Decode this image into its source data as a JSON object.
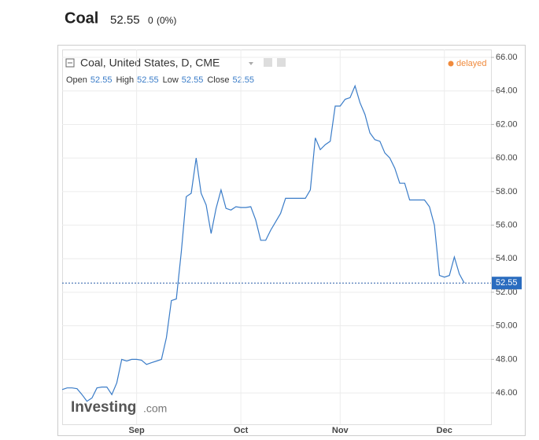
{
  "header": {
    "title": "Coal",
    "price": "52.55",
    "change": "0",
    "change_pct": "(0%)"
  },
  "chart_data": {
    "type": "line",
    "title": "Coal, United States, D, CME",
    "status": "delayed",
    "ohlc": [
      {
        "label": "Open",
        "value": "52.55"
      },
      {
        "label": "High",
        "value": "52.55"
      },
      {
        "label": "Low",
        "value": "52.55"
      },
      {
        "label": "Close",
        "value": "52.55"
      }
    ],
    "watermark": {
      "brand": "Investing",
      "suffix": ".com"
    },
    "categories": [
      null,
      null,
      null,
      null,
      null,
      null,
      null,
      null,
      null,
      null,
      null,
      null,
      null,
      null,
      null,
      "Sep",
      null,
      null,
      null,
      null,
      null,
      null,
      null,
      null,
      null,
      null,
      null,
      null,
      null,
      null,
      null,
      null,
      null,
      null,
      null,
      null,
      "Oct",
      null,
      null,
      null,
      null,
      null,
      null,
      null,
      null,
      null,
      null,
      null,
      null,
      null,
      null,
      null,
      null,
      null,
      null,
      null,
      "Nov",
      null,
      null,
      null,
      null,
      null,
      null,
      null,
      null,
      null,
      null,
      null,
      null,
      null,
      null,
      null,
      null,
      null,
      null,
      null,
      null,
      "Dec",
      null,
      null,
      null,
      null
    ],
    "series": [
      {
        "name": "Coal",
        "color": "#3a7cc8",
        "values": [
          46.2,
          46.3,
          46.3,
          46.25,
          45.9,
          45.5,
          45.7,
          46.3,
          46.35,
          46.35,
          45.9,
          46.6,
          48.0,
          47.9,
          48.0,
          48.0,
          47.95,
          47.7,
          47.8,
          47.9,
          48.0,
          49.3,
          51.5,
          51.6,
          54.4,
          57.7,
          57.9,
          60.0,
          57.9,
          57.2,
          55.5,
          57.0,
          58.1,
          57.0,
          56.9,
          57.1,
          57.05,
          57.05,
          57.1,
          56.3,
          55.1,
          55.1,
          55.7,
          56.2,
          56.7,
          57.6,
          57.6,
          57.6,
          57.6,
          57.6,
          58.1,
          61.2,
          60.5,
          60.8,
          61.0,
          63.1,
          63.1,
          63.5,
          63.6,
          64.3,
          63.3,
          62.6,
          61.5,
          61.1,
          61.0,
          60.3,
          60.0,
          59.4,
          58.5,
          58.5,
          57.5,
          57.5,
          57.5,
          57.5,
          57.1,
          56.0,
          53.0,
          52.9,
          53.0,
          54.1,
          53.1,
          52.55
        ]
      }
    ],
    "last_price": {
      "value": 52.55,
      "label": "52.55"
    },
    "ylim": [
      44.13,
      66.47
    ],
    "yticks": [
      {
        "value": 46,
        "label": "46.00"
      },
      {
        "value": 48,
        "label": "48.00"
      },
      {
        "value": 50,
        "label": "50.00"
      },
      {
        "value": 52,
        "label": "52.00"
      },
      {
        "value": 54,
        "label": "54.00"
      },
      {
        "value": 56,
        "label": "56.00"
      },
      {
        "value": 58,
        "label": "58.00"
      },
      {
        "value": 60,
        "label": "60.00"
      },
      {
        "value": 62,
        "label": "62.00"
      },
      {
        "value": 64,
        "label": "64.00"
      },
      {
        "value": 66,
        "label": "66.00"
      }
    ],
    "grid": true
  }
}
